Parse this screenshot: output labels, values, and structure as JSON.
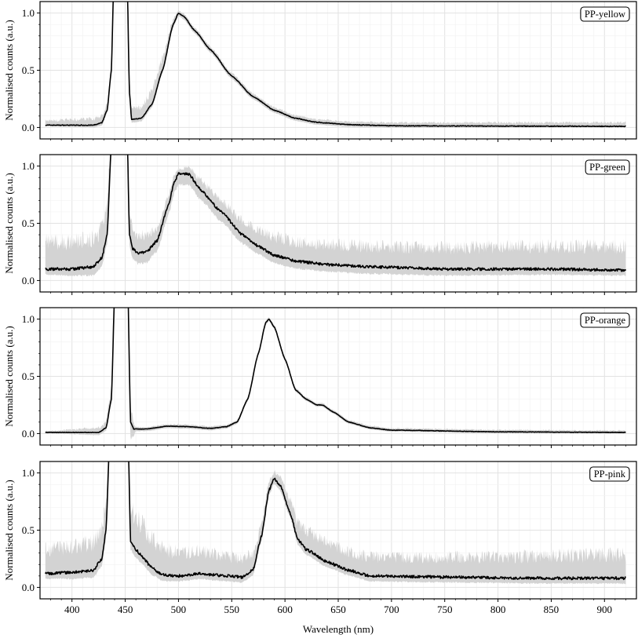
{
  "chart_data": {
    "type": "line",
    "layout": "4 stacked panels, shared x axis",
    "xlabel": "Wavelength (nm)",
    "ylabel": "Normalised counts (a.u.)",
    "xlim": [
      370,
      930
    ],
    "ylim": [
      -0.1,
      1.1
    ],
    "xticks": [
      400,
      450,
      500,
      550,
      600,
      650,
      700,
      750,
      800,
      850,
      900
    ],
    "yticks": [
      0.0,
      0.5,
      1.0
    ],
    "ytick_labels": [
      "0.0",
      "0.5",
      "1.0"
    ],
    "grid": true,
    "legend_placement": "top-right",
    "colors": {
      "line": "#000000",
      "band": "#d3d3d3",
      "grid_major": "#e2e2e2",
      "grid_minor": "#f2f2f2"
    },
    "panels": [
      {
        "label": "PP-yellow",
        "line_noise": 0.003,
        "mean": {
          "x": [
            375,
            420,
            428,
            433,
            437,
            439,
            445,
            452,
            454,
            456,
            465,
            475,
            485,
            495,
            500,
            505,
            515,
            530,
            550,
            570,
            590,
            610,
            630,
            660,
            700,
            800,
            920
          ],
          "y": [
            0.02,
            0.02,
            0.04,
            0.15,
            0.5,
            1.2,
            3,
            1.2,
            0.3,
            0.07,
            0.08,
            0.2,
            0.5,
            0.9,
            1.0,
            0.97,
            0.85,
            0.68,
            0.45,
            0.27,
            0.15,
            0.08,
            0.045,
            0.025,
            0.015,
            0.012,
            0.01
          ]
        },
        "band_above": {
          "x": [
            375,
            430,
            460,
            480,
            500,
            600,
            920
          ],
          "y": [
            0.05,
            0.07,
            0.12,
            0.15,
            0.03,
            0.03,
            0.04
          ]
        },
        "band_below": {
          "x": [
            375,
            450,
            920
          ],
          "y": [
            0.01,
            0.03,
            0.01
          ]
        }
      },
      {
        "label": "PP-green",
        "line_noise": 0.012,
        "mean": {
          "x": [
            375,
            400,
            420,
            428,
            433,
            437,
            445,
            452,
            454,
            457,
            462,
            470,
            480,
            490,
            497,
            500,
            510,
            520,
            540,
            560,
            575,
            590,
            610,
            640,
            680,
            750,
            850,
            920
          ],
          "y": [
            0.1,
            0.1,
            0.12,
            0.2,
            0.4,
            1.2,
            3,
            1.2,
            0.4,
            0.28,
            0.24,
            0.25,
            0.35,
            0.65,
            0.88,
            0.93,
            0.93,
            0.8,
            0.6,
            0.4,
            0.3,
            0.22,
            0.17,
            0.14,
            0.12,
            0.1,
            0.1,
            0.09
          ]
        },
        "band_above": {
          "x": [
            375,
            430,
            460,
            490,
            500,
            520,
            560,
            600,
            700,
            920
          ],
          "y": [
            0.28,
            0.3,
            0.2,
            0.1,
            0.05,
            0.1,
            0.15,
            0.2,
            0.22,
            0.25
          ]
        },
        "band_below": {
          "x": [
            375,
            450,
            500,
            600,
            920
          ],
          "y": [
            0.05,
            0.1,
            0.1,
            0.07,
            0.05
          ]
        }
      },
      {
        "label": "PP-orange",
        "line_noise": 0.002,
        "mean": {
          "x": [
            375,
            425,
            432,
            437,
            440,
            445,
            452,
            455,
            458,
            470,
            490,
            510,
            530,
            545,
            555,
            565,
            575,
            582,
            585,
            590,
            600,
            610,
            620,
            630,
            635,
            645,
            660,
            680,
            700,
            800,
            920
          ],
          "y": [
            0.01,
            0.01,
            0.05,
            0.3,
            1.2,
            3,
            1.5,
            0.1,
            0.04,
            0.04,
            0.065,
            0.06,
            0.045,
            0.06,
            0.1,
            0.3,
            0.7,
            0.97,
            1.0,
            0.93,
            0.65,
            0.38,
            0.3,
            0.25,
            0.25,
            0.19,
            0.1,
            0.05,
            0.03,
            0.015,
            0.01
          ]
        },
        "band_above": {
          "x": [
            375,
            430,
            450,
            460,
            920
          ],
          "y": [
            0.015,
            0.05,
            0.3,
            0.02,
            0.02
          ]
        },
        "band_below": {
          "x": [
            375,
            440,
            450,
            460,
            920
          ],
          "y": [
            0.01,
            0.03,
            0.3,
            0.02,
            0.01
          ]
        }
      },
      {
        "label": "PP-pink",
        "line_noise": 0.012,
        "mean": {
          "x": [
            375,
            400,
            420,
            428,
            432,
            435,
            445,
            453,
            455,
            460,
            465,
            475,
            485,
            500,
            520,
            545,
            560,
            570,
            578,
            585,
            590,
            595,
            605,
            612,
            620,
            640,
            660,
            680,
            750,
            850,
            920
          ],
          "y": [
            0.12,
            0.13,
            0.15,
            0.25,
            0.5,
            1.2,
            3,
            1.2,
            0.4,
            0.33,
            0.28,
            0.17,
            0.11,
            0.1,
            0.12,
            0.1,
            0.09,
            0.15,
            0.45,
            0.85,
            0.95,
            0.9,
            0.65,
            0.42,
            0.33,
            0.22,
            0.15,
            0.1,
            0.09,
            0.08,
            0.08
          ]
        },
        "band_above": {
          "x": [
            375,
            430,
            460,
            500,
            560,
            590,
            620,
            700,
            920
          ],
          "y": [
            0.25,
            0.3,
            0.35,
            0.25,
            0.2,
            0.08,
            0.2,
            0.2,
            0.25
          ]
        },
        "band_below": {
          "x": [
            375,
            450,
            500,
            920
          ],
          "y": [
            0.05,
            0.08,
            0.05,
            0.05
          ]
        }
      }
    ]
  }
}
